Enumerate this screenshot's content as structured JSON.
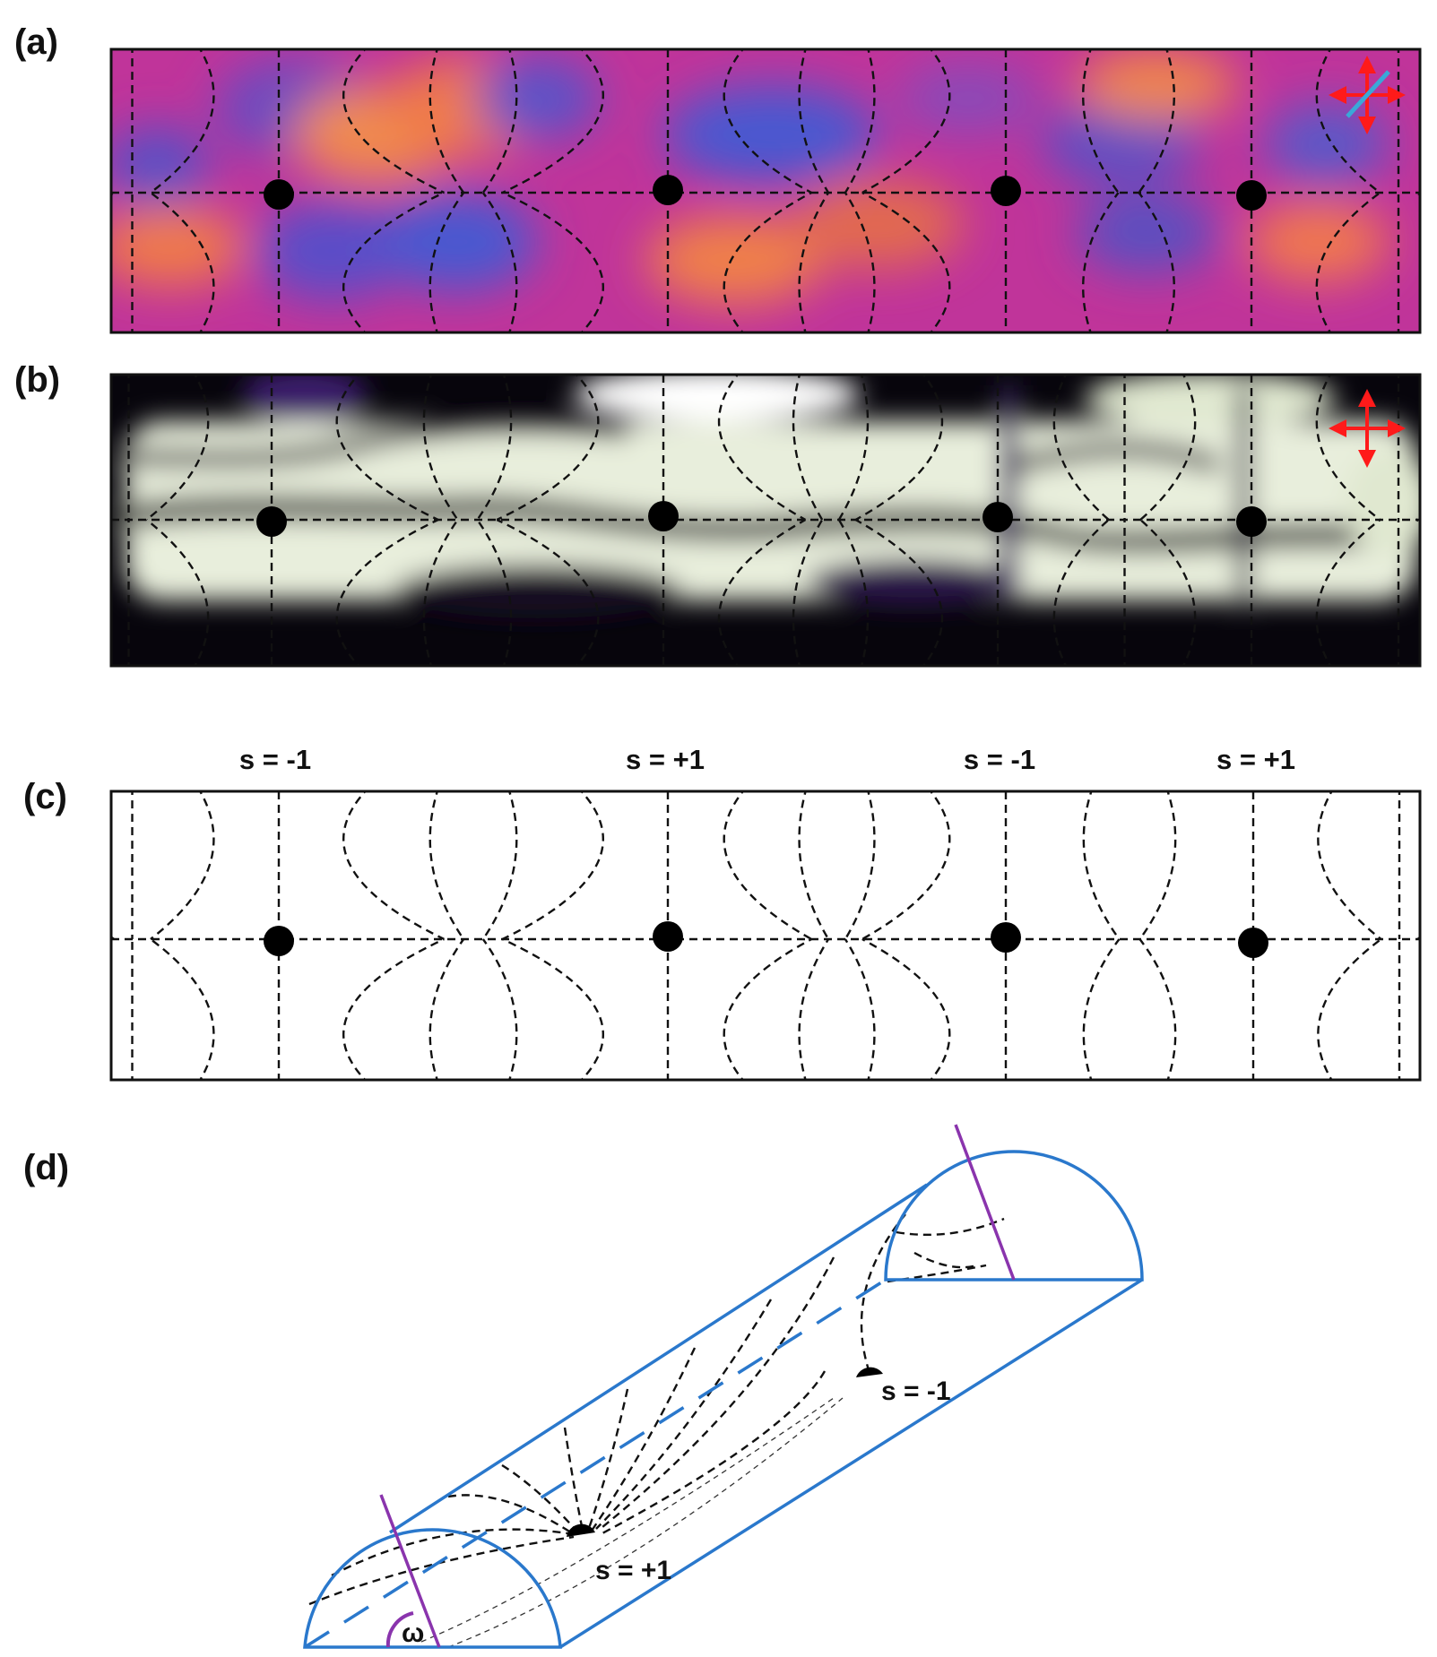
{
  "panels": {
    "a": {
      "label": "(a)"
    },
    "b": {
      "label": "(b)"
    },
    "c": {
      "label": "(c)"
    },
    "d": {
      "label": "(d)"
    }
  },
  "defects": [
    {
      "charge": "s = -1"
    },
    {
      "charge": "s = +1"
    },
    {
      "charge": "s = -1"
    },
    {
      "charge": "s = +1"
    }
  ],
  "cylinder": {
    "defect_plus": "s = +1",
    "defect_minus": "s = -1",
    "angle": "ω"
  },
  "colors": {
    "outline": "#2a78cc",
    "purple": "#8a34ad",
    "polarizer": "#ff1a1a",
    "waveplate": "#3aa8d8",
    "dots": "#000000"
  }
}
